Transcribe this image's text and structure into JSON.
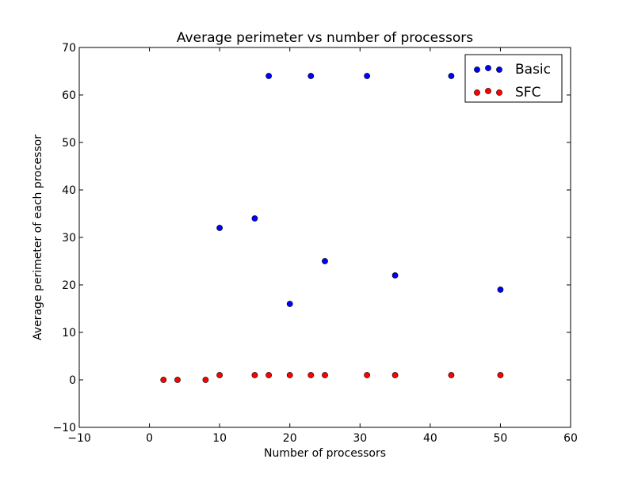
{
  "chart_data": {
    "type": "scatter",
    "title": "Average perimeter vs number of processors",
    "xlabel": "Number of processors",
    "ylabel": "Average perimeter of each processor",
    "xlim": [
      -10,
      60
    ],
    "ylim": [
      -10,
      70
    ],
    "xticks": [
      -10,
      0,
      10,
      20,
      30,
      40,
      50,
      60
    ],
    "yticks": [
      -10,
      0,
      10,
      20,
      30,
      40,
      50,
      60,
      70
    ],
    "xtick_labels": [
      "−10",
      "0",
      "10",
      "20",
      "30",
      "40",
      "50",
      "60"
    ],
    "ytick_labels": [
      "−10",
      "0",
      "10",
      "20",
      "30",
      "40",
      "50",
      "60",
      "70"
    ],
    "grid": false,
    "legend_position": "top-right",
    "series": [
      {
        "name": "Basic",
        "color": "#0000ff",
        "points": [
          [
            10,
            32
          ],
          [
            15,
            34
          ],
          [
            17,
            64
          ],
          [
            20,
            16
          ],
          [
            23,
            64
          ],
          [
            25,
            25
          ],
          [
            31,
            64
          ],
          [
            35,
            22
          ],
          [
            43,
            64
          ],
          [
            50,
            19
          ]
        ]
      },
      {
        "name": "SFC",
        "color": "#ff0000",
        "points": [
          [
            2,
            0
          ],
          [
            4,
            0
          ],
          [
            8,
            0
          ],
          [
            10,
            1
          ],
          [
            15,
            1
          ],
          [
            17,
            1
          ],
          [
            20,
            1
          ],
          [
            23,
            1
          ],
          [
            25,
            1
          ],
          [
            31,
            1
          ],
          [
            35,
            1
          ],
          [
            43,
            1
          ],
          [
            50,
            1
          ]
        ]
      }
    ]
  }
}
